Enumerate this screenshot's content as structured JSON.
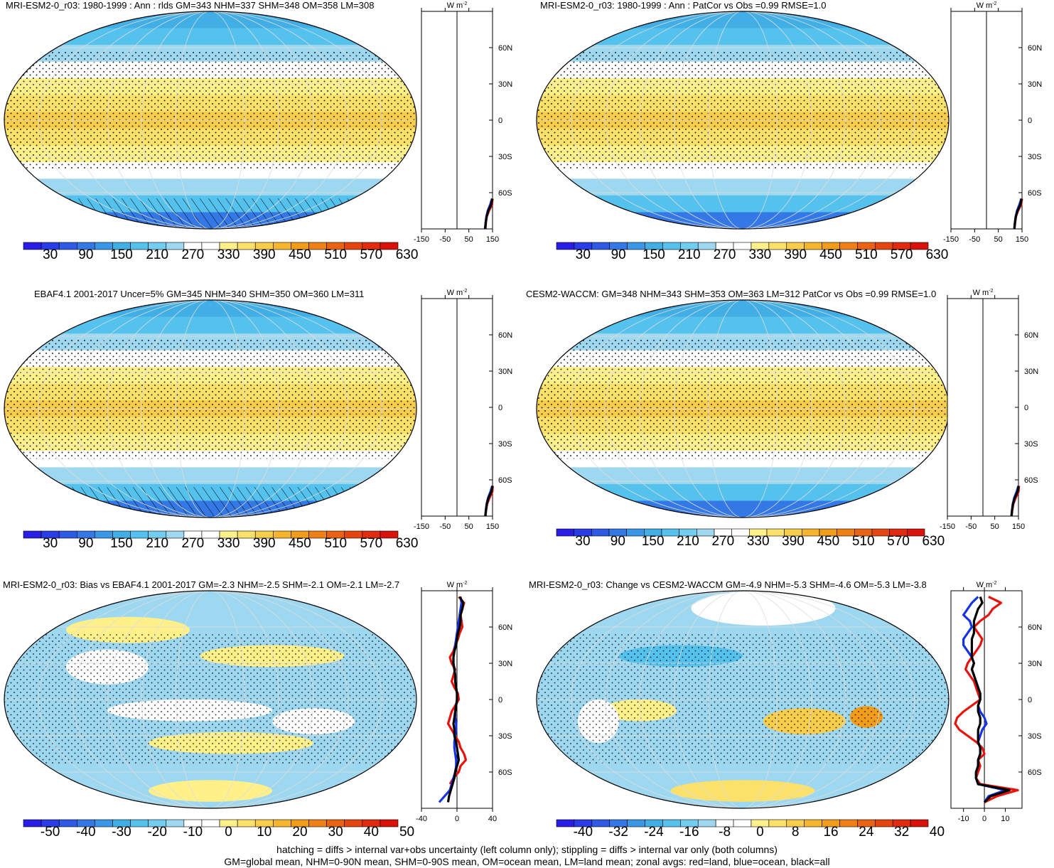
{
  "footer": {
    "line1": "hatching = diffs > internal var+obs uncertainty (left column only); stippling = diffs > internal var only (both columns)",
    "line2": "GM=global mean, NHM=0-90N mean, SHM=0-90S mean, OM=ocean mean, LM=land mean; zonal avgs: red=land, blue=ocean, black=all"
  },
  "colors": {
    "land_line": "#e8120c",
    "ocean_line": "#1433e6",
    "all_line": "#000000",
    "abs_palette": [
      "#2a1ee6",
      "#2a3ce6",
      "#2f5ae6",
      "#3478e6",
      "#3a96e6",
      "#41aee6",
      "#55c2ee",
      "#72cdf0",
      "#9ed8f0",
      "#ffffff",
      "#ffffff",
      "#fff08a",
      "#fbe069",
      "#f9cd4c",
      "#f5b52e",
      "#f19c1b",
      "#ee8016",
      "#ea6314",
      "#e64512",
      "#e22a10",
      "#d9120c"
    ],
    "diff_palette": [
      "#2a1ee6",
      "#2a3ce6",
      "#2f5ae6",
      "#3478e6",
      "#3a96e6",
      "#41aee6",
      "#55c2ee",
      "#72cdf0",
      "#9ed8f0",
      "#ffffff",
      "#ffffff",
      "#fff08a",
      "#fbe069",
      "#f9cd4c",
      "#f5b52e",
      "#f19c1b",
      "#ee8016",
      "#ea6314",
      "#e64512",
      "#e22a10",
      "#d9120c"
    ]
  },
  "chart_data": [
    {
      "type": "heatmap",
      "title": "MRI-ESM2-0_r03: 1980-1999 : Ann : rlds GM=343 NHM=337 SHM=348 OM=358 LM=308",
      "colorbar_labels": [
        "30",
        "90",
        "150",
        "210",
        "270",
        "330",
        "390",
        "450",
        "510",
        "570",
        "630"
      ],
      "zonal_profile": {
        "unit": "W m",
        "unit_exp": "-2",
        "xticks": [
          "-150",
          "-50",
          "50",
          "150"
        ],
        "xlim": [
          -150,
          150
        ],
        "lat_labels": [
          "60N",
          "30N",
          "0",
          "30S",
          "60S"
        ],
        "lat_values": [
          60,
          30,
          0,
          -30,
          -60
        ],
        "ylim": [
          -90,
          90
        ],
        "series": [
          {
            "name": "land",
            "lat": [
              -90,
              -85,
              -80,
              -75,
              -70,
              -65
            ],
            "values": [
              120,
              122,
              125,
              135,
              148,
              150
            ]
          },
          {
            "name": "ocean",
            "lat": [
              -90,
              -85,
              -80,
              -75,
              -70,
              -65
            ],
            "values": [
              118,
              121,
              124,
              130,
              140,
              148
            ]
          },
          {
            "name": "all",
            "lat": [
              -90,
              -85,
              -80,
              -75,
              -70,
              -65
            ],
            "values": [
              119,
              121,
              125,
              132,
              144,
              149
            ]
          }
        ]
      }
    },
    {
      "type": "heatmap",
      "title": "MRI-ESM2-0_r03: 1980-1999 : Ann : PatCor vs Obs =0.99 RMSE=1.0",
      "colorbar_labels": [
        "30",
        "90",
        "150",
        "210",
        "270",
        "330",
        "390",
        "450",
        "510",
        "570",
        "630"
      ],
      "zonal_profile": {
        "unit": "W m",
        "unit_exp": "-2",
        "xticks": [
          "-150",
          "-50",
          "50",
          "150"
        ],
        "xlim": [
          -150,
          150
        ],
        "lat_labels": [
          "60N",
          "30N",
          "0",
          "30S",
          "60S"
        ],
        "lat_values": [
          60,
          30,
          0,
          -30,
          -60
        ],
        "ylim": [
          -90,
          90
        ],
        "series": [
          {
            "name": "land",
            "lat": [
              -90,
              -85,
              -80,
              -75,
              -70,
              -65
            ],
            "values": [
              118,
              121,
              124,
              133,
              146,
              150
            ]
          },
          {
            "name": "ocean",
            "lat": [
              -90,
              -85,
              -80,
              -75,
              -70,
              -65
            ],
            "values": [
              117,
              120,
              123,
              129,
              139,
              147
            ]
          },
          {
            "name": "all",
            "lat": [
              -90,
              -85,
              -80,
              -75,
              -70,
              -65
            ],
            "values": [
              118,
              120,
              124,
              131,
              143,
              148
            ]
          }
        ]
      }
    },
    {
      "type": "heatmap",
      "title": "EBAF4.1 2001-2017 Uncer=5% GM=345 NHM=340 SHM=350 OM=360 LM=311",
      "colorbar_labels": [
        "30",
        "90",
        "150",
        "210",
        "270",
        "330",
        "390",
        "450",
        "510",
        "570",
        "630"
      ],
      "zonal_profile": {
        "unit": "W m",
        "unit_exp": "-2",
        "xticks": [
          "-150",
          "-50",
          "50",
          "150"
        ],
        "xlim": [
          -150,
          150
        ],
        "lat_labels": [
          "60N",
          "30N",
          "0",
          "30S",
          "60S"
        ],
        "lat_values": [
          60,
          30,
          0,
          -30,
          -60
        ],
        "ylim": [
          -90,
          90
        ],
        "series": [
          {
            "name": "land",
            "lat": [
              -90,
              -85,
              -80,
              -75,
              -70,
              -65
            ],
            "values": [
              120,
              123,
              127,
              137,
              149,
              151
            ]
          },
          {
            "name": "ocean",
            "lat": [
              -90,
              -85,
              -80,
              -75,
              -70,
              -65
            ],
            "values": [
              119,
              122,
              125,
              131,
              141,
              149
            ]
          },
          {
            "name": "all",
            "lat": [
              -90,
              -85,
              -80,
              -75,
              -70,
              -65
            ],
            "values": [
              120,
              122,
              126,
              133,
              145,
              150
            ]
          }
        ]
      }
    },
    {
      "type": "heatmap",
      "title": "CESM2-WACCM: GM=348 NHM=343 SHM=353 OM=363 LM=312 PatCor vs Obs =0.99 RMSE=1.0",
      "colorbar_labels": [
        "30",
        "90",
        "150",
        "210",
        "270",
        "330",
        "390",
        "450",
        "510",
        "570",
        "630"
      ],
      "zonal_profile": {
        "unit": "W m",
        "unit_exp": "-2",
        "xticks": [
          "-150",
          "-50",
          "50",
          "150"
        ],
        "xlim": [
          -150,
          150
        ],
        "lat_labels": [
          "60N",
          "30N",
          "0",
          "30S",
          "60S"
        ],
        "lat_values": [
          60,
          30,
          0,
          -30,
          -60
        ],
        "ylim": [
          -90,
          90
        ],
        "series": [
          {
            "name": "land",
            "lat": [
              -90,
              -85,
              -80,
              -75,
              -70,
              -65
            ],
            "values": [
              121,
              124,
              128,
              138,
              150,
              152
            ]
          },
          {
            "name": "ocean",
            "lat": [
              -90,
              -85,
              -80,
              -75,
              -70,
              -65
            ],
            "values": [
              120,
              123,
              126,
              132,
              142,
              150
            ]
          },
          {
            "name": "all",
            "lat": [
              -90,
              -85,
              -80,
              -75,
              -70,
              -65
            ],
            "values": [
              121,
              123,
              127,
              134,
              146,
              151
            ]
          }
        ]
      }
    },
    {
      "type": "heatmap",
      "title": "MRI-ESM2-0_r03: Bias vs EBAF4.1 2001-2017 GM=-2.3 NHM=-2.5 SHM=-2.1 OM=-2.1 LM=-2.7",
      "colorbar_labels": [
        "-50",
        "-40",
        "-30",
        "-20",
        "-10",
        "0",
        "10",
        "20",
        "30",
        "40",
        "50"
      ],
      "zonal_profile": {
        "unit": "W m",
        "unit_exp": "-2",
        "xticks": [
          "-40",
          "0",
          "40"
        ],
        "xlim": [
          -40,
          40
        ],
        "lat_labels": [
          "60N",
          "30N",
          "0",
          "30S",
          "60S"
        ],
        "lat_values": [
          60,
          30,
          0,
          -30,
          -60
        ],
        "ylim": [
          -90,
          90
        ],
        "series": [
          {
            "name": "land",
            "lat": [
              -70,
              -65,
              -60,
              -55,
              -50,
              -45,
              -40,
              -35,
              -30,
              -25,
              -20,
              -15,
              -10,
              -5,
              0,
              5,
              10,
              15,
              20,
              25,
              30,
              35,
              40,
              45,
              50,
              55,
              60,
              65,
              70,
              75,
              80,
              85
            ],
            "values": [
              -8,
              -4,
              2,
              4,
              10,
              8,
              4,
              2,
              -2,
              -6,
              -10,
              -8,
              -6,
              -2,
              2,
              1,
              -3,
              -6,
              -4,
              -2,
              -6,
              -8,
              -4,
              -2,
              1,
              3,
              6,
              5,
              4,
              6,
              8,
              2
            ]
          },
          {
            "name": "ocean",
            "lat": [
              -85,
              -80,
              -75,
              -70,
              -65,
              -60,
              -55,
              -50,
              -45,
              -40,
              -35,
              -30,
              -25,
              -20,
              -15,
              -10,
              -5,
              0,
              5,
              10,
              15,
              20,
              25,
              30,
              35,
              40,
              45,
              50,
              55,
              60,
              65,
              70,
              75,
              80,
              85
            ],
            "values": [
              -20,
              -14,
              -8,
              -6,
              -4,
              -2,
              -1,
              -1,
              -2,
              -3,
              -3,
              -2,
              -1,
              -1,
              -2,
              -2,
              -1,
              0,
              0,
              -1,
              -2,
              -2,
              -3,
              -4,
              -4,
              -3,
              -2,
              -1,
              0,
              1,
              2,
              3,
              4,
              5,
              4
            ]
          },
          {
            "name": "all",
            "lat": [
              -85,
              -80,
              -75,
              -70,
              -65,
              -60,
              -55,
              -50,
              -45,
              -40,
              -35,
              -30,
              -25,
              -20,
              -15,
              -10,
              -5,
              0,
              5,
              10,
              15,
              20,
              25,
              30,
              35,
              40,
              45,
              50,
              55,
              60,
              65,
              70,
              75,
              80,
              85
            ],
            "values": [
              -10,
              -9,
              -7,
              -5,
              -3,
              -2,
              0,
              2,
              1,
              0,
              -1,
              -3,
              -3,
              -4,
              -3,
              -2,
              -1,
              0,
              0,
              -1,
              -2,
              -2,
              -3,
              -4,
              -4,
              -3,
              -1,
              0,
              1,
              3,
              4,
              4,
              6,
              7,
              3
            ]
          }
        ]
      }
    },
    {
      "type": "heatmap",
      "title": "MRI-ESM2-0_r03: Change vs CESM2-WACCM GM=-4.9 NHM=-5.3 SHM=-4.6 OM=-5.3 LM=-3.8",
      "colorbar_labels": [
        "-40",
        "-32",
        "-24",
        "-16",
        "-8",
        "0",
        "8",
        "16",
        "24",
        "32",
        "40"
      ],
      "zonal_profile": {
        "unit": "W m",
        "unit_exp": "-2",
        "xticks": [
          "-10",
          "0",
          "10"
        ],
        "xlim": [
          -16,
          18
        ],
        "lat_labels": [
          "60N",
          "30N",
          "0",
          "30S",
          "60S"
        ],
        "lat_values": [
          60,
          30,
          0,
          -30,
          -60
        ],
        "ylim": [
          -90,
          90
        ],
        "series": [
          {
            "name": "land",
            "lat": [
              -85,
              -80,
              -75,
              -70,
              -65,
              -60,
              -55,
              -50,
              -45,
              -40,
              -35,
              -30,
              -25,
              -20,
              -15,
              -10,
              -5,
              0,
              5,
              10,
              15,
              20,
              25,
              30,
              35,
              40,
              45,
              50,
              55,
              60,
              65,
              70,
              75,
              80,
              85
            ],
            "values": [
              0,
              6,
              16,
              -2,
              -4,
              -3,
              -2,
              -3,
              0,
              -1,
              -4,
              -8,
              -12,
              -14,
              -13,
              -10,
              -6,
              -2,
              -3,
              -4,
              -5,
              -7,
              -9,
              -8,
              -6,
              -4,
              -2,
              -1,
              -3,
              -5,
              -2,
              2,
              4,
              8,
              2
            ]
          },
          {
            "name": "ocean",
            "lat": [
              -85,
              -80,
              -75,
              -70,
              -65,
              -60,
              -55,
              -50,
              -45,
              -40,
              -35,
              -30,
              -25,
              -20,
              -15,
              -10,
              -5,
              0,
              5,
              10,
              15,
              20,
              25,
              30,
              35,
              40,
              45,
              50,
              55,
              60,
              65,
              70,
              75,
              80,
              85
            ],
            "values": [
              0,
              2,
              10,
              -3,
              -4,
              -4,
              -3,
              -3,
              -2,
              -2,
              -3,
              -2,
              -1,
              1,
              0,
              -2,
              -3,
              -2,
              -2,
              -3,
              -4,
              -5,
              -6,
              -5,
              -6,
              -8,
              -10,
              -10,
              -8,
              -6,
              -7,
              -10,
              -8,
              -6,
              -3
            ]
          },
          {
            "name": "all",
            "lat": [
              -85,
              -80,
              -75,
              -70,
              -65,
              -60,
              -55,
              -50,
              -45,
              -40,
              -35,
              -30,
              -25,
              -20,
              -15,
              -10,
              -5,
              0,
              5,
              10,
              15,
              20,
              25,
              30,
              35,
              40,
              45,
              50,
              55,
              60,
              65,
              70,
              75,
              80,
              85
            ],
            "values": [
              0,
              3,
              12,
              -3,
              -4,
              -4,
              -3,
              -3,
              -2,
              -2,
              -3,
              -3,
              -3,
              -2,
              -2,
              -3,
              -3,
              -2,
              -2,
              -3,
              -4,
              -5,
              -6,
              -5,
              -6,
              -6,
              -6,
              -6,
              -5,
              -5,
              -5,
              -4,
              -3,
              -1,
              -2
            ]
          }
        ]
      }
    }
  ]
}
